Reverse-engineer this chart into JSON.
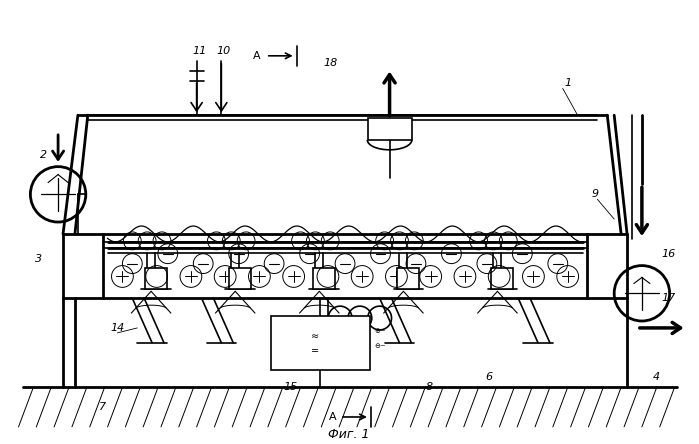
{
  "title": "Фиг. 1",
  "bg": "#ffffff",
  "lc": "#000000",
  "fig_w": 6.99,
  "fig_h": 4.44,
  "dpi": 100
}
